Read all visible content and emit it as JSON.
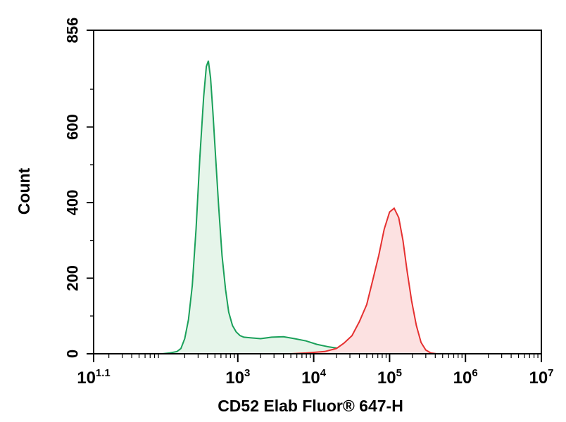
{
  "chart_data": {
    "type": "area",
    "title": "",
    "xlabel": "CD52 Elab Fluor® 647-H",
    "ylabel": "Count",
    "xscale": "log",
    "xlim": [
      12.6,
      10000000
    ],
    "ylim": [
      0,
      856
    ],
    "y_ticks": [
      {
        "value": 0,
        "label": "0"
      },
      {
        "value": 200,
        "label": "200"
      },
      {
        "value": 400,
        "label": "400"
      },
      {
        "value": 600,
        "label": "600"
      },
      {
        "value": 856,
        "label": "856"
      }
    ],
    "x_ticks": [
      {
        "value": 12.6,
        "base": "10",
        "exp": "1.1"
      },
      {
        "value": 1000,
        "base": "10",
        "exp": "3"
      },
      {
        "value": 10000,
        "base": "10",
        "exp": "4"
      },
      {
        "value": 100000,
        "base": "10",
        "exp": "5"
      },
      {
        "value": 1000000,
        "base": "10",
        "exp": "6"
      },
      {
        "value": 10000000,
        "base": "10",
        "exp": "7"
      }
    ],
    "grid": false,
    "legend": "none",
    "series": [
      {
        "color": "#1aa05a",
        "fill": "#e6f5ea",
        "points": [
          [
            100,
            0
          ],
          [
            126,
            2
          ],
          [
            158,
            6
          ],
          [
            178,
            14
          ],
          [
            200,
            40
          ],
          [
            224,
            90
          ],
          [
            251,
            180
          ],
          [
            282,
            330
          ],
          [
            316,
            520
          ],
          [
            355,
            680
          ],
          [
            385,
            760
          ],
          [
            410,
            775
          ],
          [
            438,
            730
          ],
          [
            470,
            640
          ],
          [
            510,
            520
          ],
          [
            560,
            390
          ],
          [
            620,
            260
          ],
          [
            690,
            170
          ],
          [
            760,
            110
          ],
          [
            850,
            75
          ],
          [
            950,
            58
          ],
          [
            1070,
            48
          ],
          [
            1200,
            44
          ],
          [
            1500,
            42
          ],
          [
            2000,
            40
          ],
          [
            2800,
            44
          ],
          [
            4000,
            45
          ],
          [
            5600,
            40
          ],
          [
            7900,
            34
          ],
          [
            11000,
            25
          ],
          [
            16000,
            18
          ],
          [
            22000,
            14
          ],
          [
            32000,
            8
          ],
          [
            45000,
            4
          ],
          [
            63000,
            1
          ],
          [
            90000,
            0
          ]
        ]
      },
      {
        "color": "#e53030",
        "fill": "#fce1e1",
        "points": [
          [
            5000,
            0
          ],
          [
            8000,
            2
          ],
          [
            14000,
            6
          ],
          [
            20000,
            14
          ],
          [
            25000,
            28
          ],
          [
            32000,
            48
          ],
          [
            40000,
            85
          ],
          [
            50000,
            130
          ],
          [
            60000,
            195
          ],
          [
            72000,
            260
          ],
          [
            85000,
            330
          ],
          [
            100000,
            375
          ],
          [
            115000,
            385
          ],
          [
            132000,
            360
          ],
          [
            150000,
            300
          ],
          [
            170000,
            220
          ],
          [
            195000,
            140
          ],
          [
            225000,
            75
          ],
          [
            260000,
            30
          ],
          [
            300000,
            10
          ],
          [
            350000,
            2
          ],
          [
            420000,
            0
          ]
        ]
      }
    ]
  }
}
